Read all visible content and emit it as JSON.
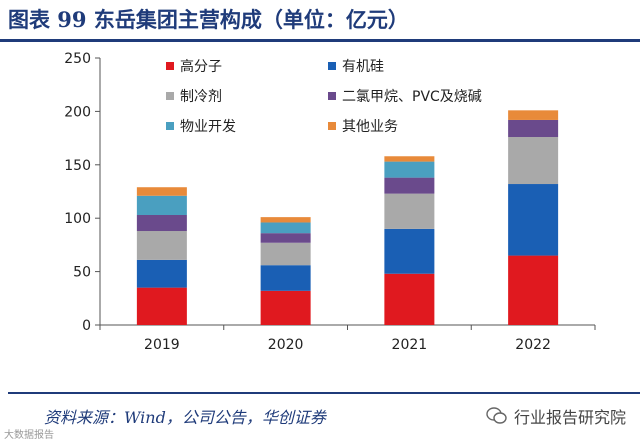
{
  "title": "图表 99 东岳集团主营构成（单位：亿元）",
  "source": "资料来源：Wind，公司公告，华创证券",
  "watermark_right": "行业报告研究院",
  "watermark_left": "大数据报告",
  "colors": {
    "heading": "#1f3b7a",
    "series": [
      "#e0191f",
      "#1a5fb4",
      "#a9a9a9",
      "#6a4a8c",
      "#4a9fc0",
      "#e88a3a"
    ]
  },
  "chart_data": {
    "type": "bar",
    "stacked": true,
    "title": "东岳集团主营构成（单位：亿元）",
    "xlabel": "",
    "ylabel": "",
    "ylim": [
      0,
      250
    ],
    "yticks": [
      0,
      50,
      100,
      150,
      200,
      250
    ],
    "grid": false,
    "legend_position": "top",
    "categories": [
      "2019",
      "2020",
      "2021",
      "2022"
    ],
    "series": [
      {
        "name": "高分子",
        "values": [
          35,
          32,
          48,
          65
        ]
      },
      {
        "name": "有机硅",
        "values": [
          26,
          24,
          42,
          67
        ]
      },
      {
        "name": "制冷剂",
        "values": [
          27,
          21,
          33,
          44
        ]
      },
      {
        "name": "二氯甲烷、PVC及烧碱",
        "values": [
          15,
          9,
          15,
          16
        ]
      },
      {
        "name": "物业开发",
        "values": [
          18,
          10,
          15,
          0
        ]
      },
      {
        "name": "其他业务",
        "values": [
          8,
          5,
          5,
          9
        ]
      }
    ]
  }
}
